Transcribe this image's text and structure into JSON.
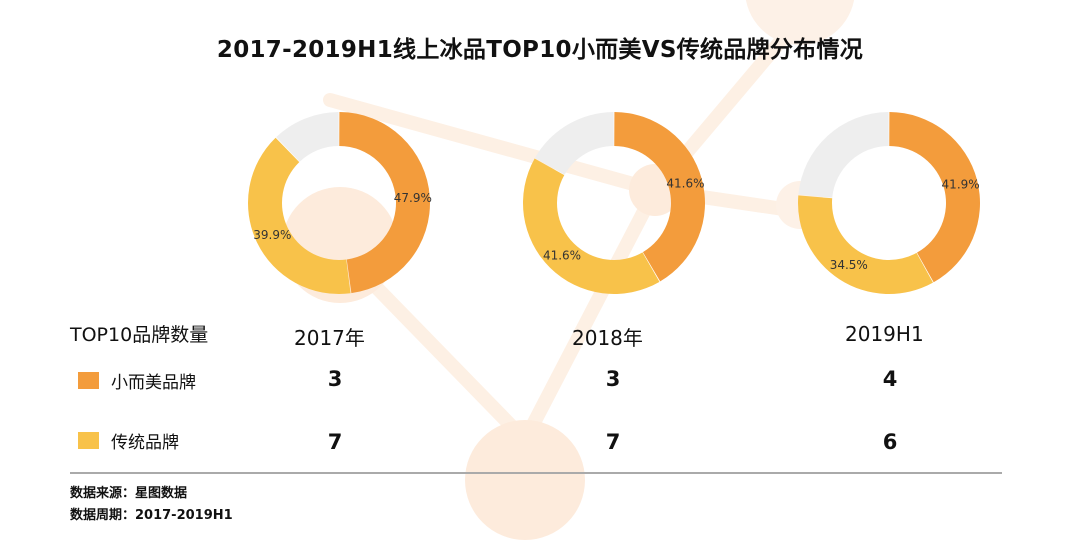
{
  "title": "2017-2019H1线上冰品TOP10小而美VS传统品牌分布情况",
  "colors": {
    "small_beautiful": "#f39c3c",
    "traditional": "#f8c24a",
    "other": "#eeeeee",
    "background_art": "#fdeee0"
  },
  "chart_data": {
    "type": "pie",
    "variant": "donut",
    "charts": [
      {
        "period": "2017年",
        "slices": [
          {
            "series": "小而美品牌",
            "value": 47.9,
            "label": "47.9%"
          },
          {
            "series": "传统品牌",
            "value": 39.9,
            "label": "39.9%"
          },
          {
            "series": "",
            "value": 12.2,
            "label": ""
          }
        ]
      },
      {
        "period": "2018年",
        "slices": [
          {
            "series": "小而美品牌",
            "value": 41.6,
            "label": "41.6%"
          },
          {
            "series": "传统品牌",
            "value": 41.6,
            "label": "41.6%"
          },
          {
            "series": "",
            "value": 16.8,
            "label": ""
          }
        ]
      },
      {
        "period": "2019H1",
        "slices": [
          {
            "series": "小而美品牌",
            "value": 41.9,
            "label": "41.9%"
          },
          {
            "series": "传统品牌",
            "value": 34.5,
            "label": "34.5%"
          },
          {
            "series": "",
            "value": 23.6,
            "label": ""
          }
        ]
      }
    ]
  },
  "table": {
    "header_label": "TOP10品牌数量",
    "columns": [
      "2017年",
      "2018年",
      "2019H1"
    ],
    "rows": [
      {
        "label": "小而美品牌",
        "values": [
          "3",
          "3",
          "4"
        ]
      },
      {
        "label": "传统品牌",
        "values": [
          "7",
          "7",
          "6"
        ]
      }
    ]
  },
  "footnotes": {
    "source": "数据来源：星图数据",
    "period": "数据周期：2017-2019H1"
  }
}
